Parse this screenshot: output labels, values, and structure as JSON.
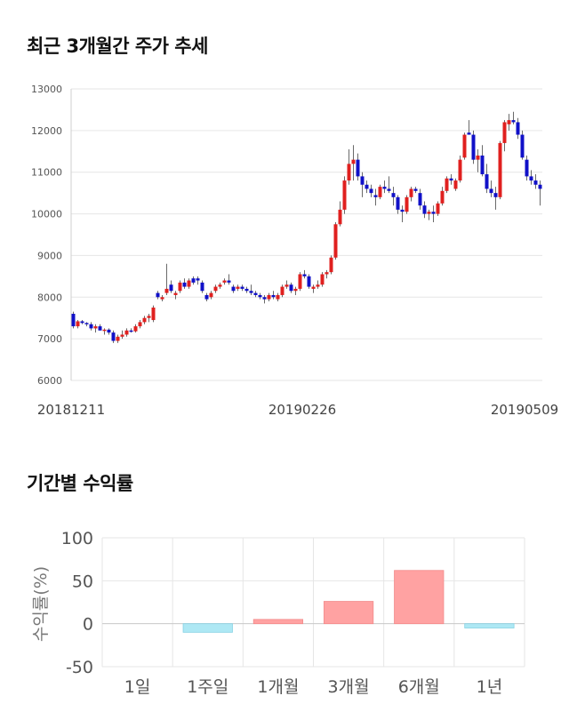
{
  "sections": {
    "price_title": "최근 3개월간 주가 추세",
    "returns_title": "기간별 수익률"
  },
  "colors": {
    "up": "#e0201f",
    "down": "#1010c8",
    "bar_pos": "#ffa2a2",
    "bar_neg": "#aee8f4",
    "grid": "#e6e6e6"
  },
  "chart_data": [
    {
      "type": "candlestick",
      "title": "최근 3개월간 주가 추세",
      "ylim": [
        6000,
        13000
      ],
      "yticks": [
        "13000",
        "12000",
        "11000",
        "10000",
        "9000",
        "8000",
        "7000",
        "6000"
      ],
      "xticks": [
        "20181211",
        "20190226",
        "20190509"
      ],
      "grid": true,
      "ohlc": [
        [
          7600,
          7650,
          7250,
          7300
        ],
        [
          7300,
          7450,
          7250,
          7420
        ],
        [
          7420,
          7450,
          7350,
          7380
        ],
        [
          7380,
          7400,
          7300,
          7350
        ],
        [
          7350,
          7400,
          7200,
          7250
        ],
        [
          7250,
          7350,
          7150,
          7300
        ],
        [
          7300,
          7350,
          7200,
          7200
        ],
        [
          7200,
          7250,
          7100,
          7220
        ],
        [
          7220,
          7250,
          7100,
          7150
        ],
        [
          7150,
          7200,
          6900,
          6950
        ],
        [
          6950,
          7100,
          6900,
          7050
        ],
        [
          7050,
          7200,
          7000,
          7100
        ],
        [
          7100,
          7250,
          7050,
          7200
        ],
        [
          7200,
          7250,
          7150,
          7180
        ],
        [
          7180,
          7350,
          7150,
          7300
        ],
        [
          7300,
          7450,
          7250,
          7400
        ],
        [
          7400,
          7550,
          7350,
          7500
        ],
        [
          7500,
          7600,
          7400,
          7550
        ],
        [
          7450,
          7800,
          7400,
          7750
        ],
        [
          8100,
          8150,
          7950,
          8000
        ],
        [
          7950,
          8050,
          7900,
          8000
        ],
        [
          8100,
          8800,
          8050,
          8200
        ],
        [
          8300,
          8400,
          8100,
          8150
        ],
        [
          8050,
          8150,
          7950,
          8100
        ],
        [
          8150,
          8400,
          8100,
          8350
        ],
        [
          8350,
          8450,
          8200,
          8250
        ],
        [
          8250,
          8450,
          8200,
          8400
        ],
        [
          8450,
          8500,
          8300,
          8350
        ],
        [
          8450,
          8500,
          8300,
          8400
        ],
        [
          8350,
          8400,
          8100,
          8150
        ],
        [
          8050,
          8100,
          7900,
          7950
        ],
        [
          8000,
          8150,
          7950,
          8100
        ],
        [
          8150,
          8300,
          8100,
          8250
        ],
        [
          8250,
          8350,
          8200,
          8300
        ],
        [
          8350,
          8450,
          8300,
          8400
        ],
        [
          8400,
          8550,
          8300,
          8350
        ],
        [
          8250,
          8300,
          8100,
          8150
        ],
        [
          8200,
          8300,
          8150,
          8250
        ],
        [
          8250,
          8300,
          8150,
          8200
        ],
        [
          8200,
          8250,
          8100,
          8150
        ],
        [
          8150,
          8300,
          8050,
          8100
        ],
        [
          8100,
          8150,
          8000,
          8050
        ],
        [
          8050,
          8100,
          7950,
          8000
        ],
        [
          8000,
          8050,
          7850,
          7950
        ],
        [
          7950,
          8100,
          7900,
          8050
        ],
        [
          8050,
          8150,
          7950,
          8000
        ],
        [
          7950,
          8100,
          7900,
          8050
        ],
        [
          8050,
          8300,
          8000,
          8250
        ],
        [
          8250,
          8400,
          8200,
          8300
        ],
        [
          8300,
          8350,
          8100,
          8150
        ],
        [
          8150,
          8250,
          8050,
          8200
        ],
        [
          8200,
          8600,
          8150,
          8550
        ],
        [
          8550,
          8650,
          8450,
          8500
        ],
        [
          8500,
          8550,
          8200,
          8250
        ],
        [
          8200,
          8300,
          8100,
          8250
        ],
        [
          8250,
          8400,
          8200,
          8300
        ],
        [
          8300,
          8600,
          8250,
          8550
        ],
        [
          8550,
          8650,
          8450,
          8600
        ],
        [
          8600,
          9000,
          8550,
          8950
        ],
        [
          8950,
          9800,
          8900,
          9750
        ],
        [
          9750,
          10300,
          9700,
          10100
        ],
        [
          10100,
          10900,
          10000,
          10800
        ],
        [
          10800,
          11550,
          10700,
          11200
        ],
        [
          11200,
          11650,
          10800,
          11300
        ],
        [
          11300,
          11450,
          10800,
          10900
        ],
        [
          10900,
          11000,
          10400,
          10700
        ],
        [
          10700,
          10800,
          10500,
          10600
        ],
        [
          10600,
          10700,
          10400,
          10500
        ],
        [
          10450,
          10600,
          10200,
          10400
        ],
        [
          10400,
          10700,
          10350,
          10650
        ],
        [
          10650,
          10800,
          10500,
          10600
        ],
        [
          10600,
          10900,
          10500,
          10550
        ],
        [
          10500,
          10650,
          10200,
          10400
        ],
        [
          10400,
          10450,
          10000,
          10100
        ],
        [
          10100,
          10200,
          9800,
          10050
        ],
        [
          10050,
          10450,
          10000,
          10400
        ],
        [
          10400,
          10650,
          10300,
          10600
        ],
        [
          10600,
          10650,
          10500,
          10550
        ],
        [
          10500,
          10600,
          10100,
          10200
        ],
        [
          10200,
          10300,
          9900,
          10000
        ],
        [
          10000,
          10100,
          9850,
          10050
        ],
        [
          10050,
          10200,
          9800,
          10000
        ],
        [
          10000,
          10300,
          9950,
          10250
        ],
        [
          10250,
          10650,
          10200,
          10550
        ],
        [
          10550,
          10900,
          10500,
          10850
        ],
        [
          10850,
          10950,
          10700,
          10800
        ],
        [
          10600,
          10850,
          10550,
          10800
        ],
        [
          10800,
          11400,
          10750,
          11300
        ],
        [
          11350,
          11950,
          11300,
          11900
        ],
        [
          11950,
          12250,
          11900,
          11900
        ],
        [
          11900,
          12000,
          11200,
          11300
        ],
        [
          11300,
          11550,
          11000,
          11400
        ],
        [
          11400,
          11650,
          10900,
          10950
        ],
        [
          10950,
          11200,
          10500,
          10600
        ],
        [
          10600,
          10800,
          10400,
          10500
        ],
        [
          10500,
          10650,
          10100,
          10400
        ],
        [
          10400,
          11750,
          10350,
          11700
        ],
        [
          11700,
          12250,
          11500,
          12200
        ],
        [
          12150,
          12400,
          12000,
          12250
        ],
        [
          12250,
          12450,
          12150,
          12200
        ],
        [
          12200,
          12300,
          11800,
          11900
        ],
        [
          11900,
          12000,
          11300,
          11350
        ],
        [
          11300,
          11400,
          10800,
          10900
        ],
        [
          10900,
          11050,
          10700,
          10800
        ],
        [
          10800,
          10950,
          10600,
          10700
        ],
        [
          10700,
          10800,
          10200,
          10600
        ]
      ]
    },
    {
      "type": "bar",
      "title": "기간별 수익률",
      "ylabel": "수익률(%)",
      "categories": [
        "1일",
        "1주일",
        "1개월",
        "3개월",
        "6개월",
        "1년"
      ],
      "values": [
        0,
        -10,
        5,
        26,
        62,
        -5
      ],
      "ylim": [
        -50,
        100
      ],
      "yticks": [
        "100",
        "50",
        "0",
        "-50"
      ],
      "grid": true
    }
  ]
}
